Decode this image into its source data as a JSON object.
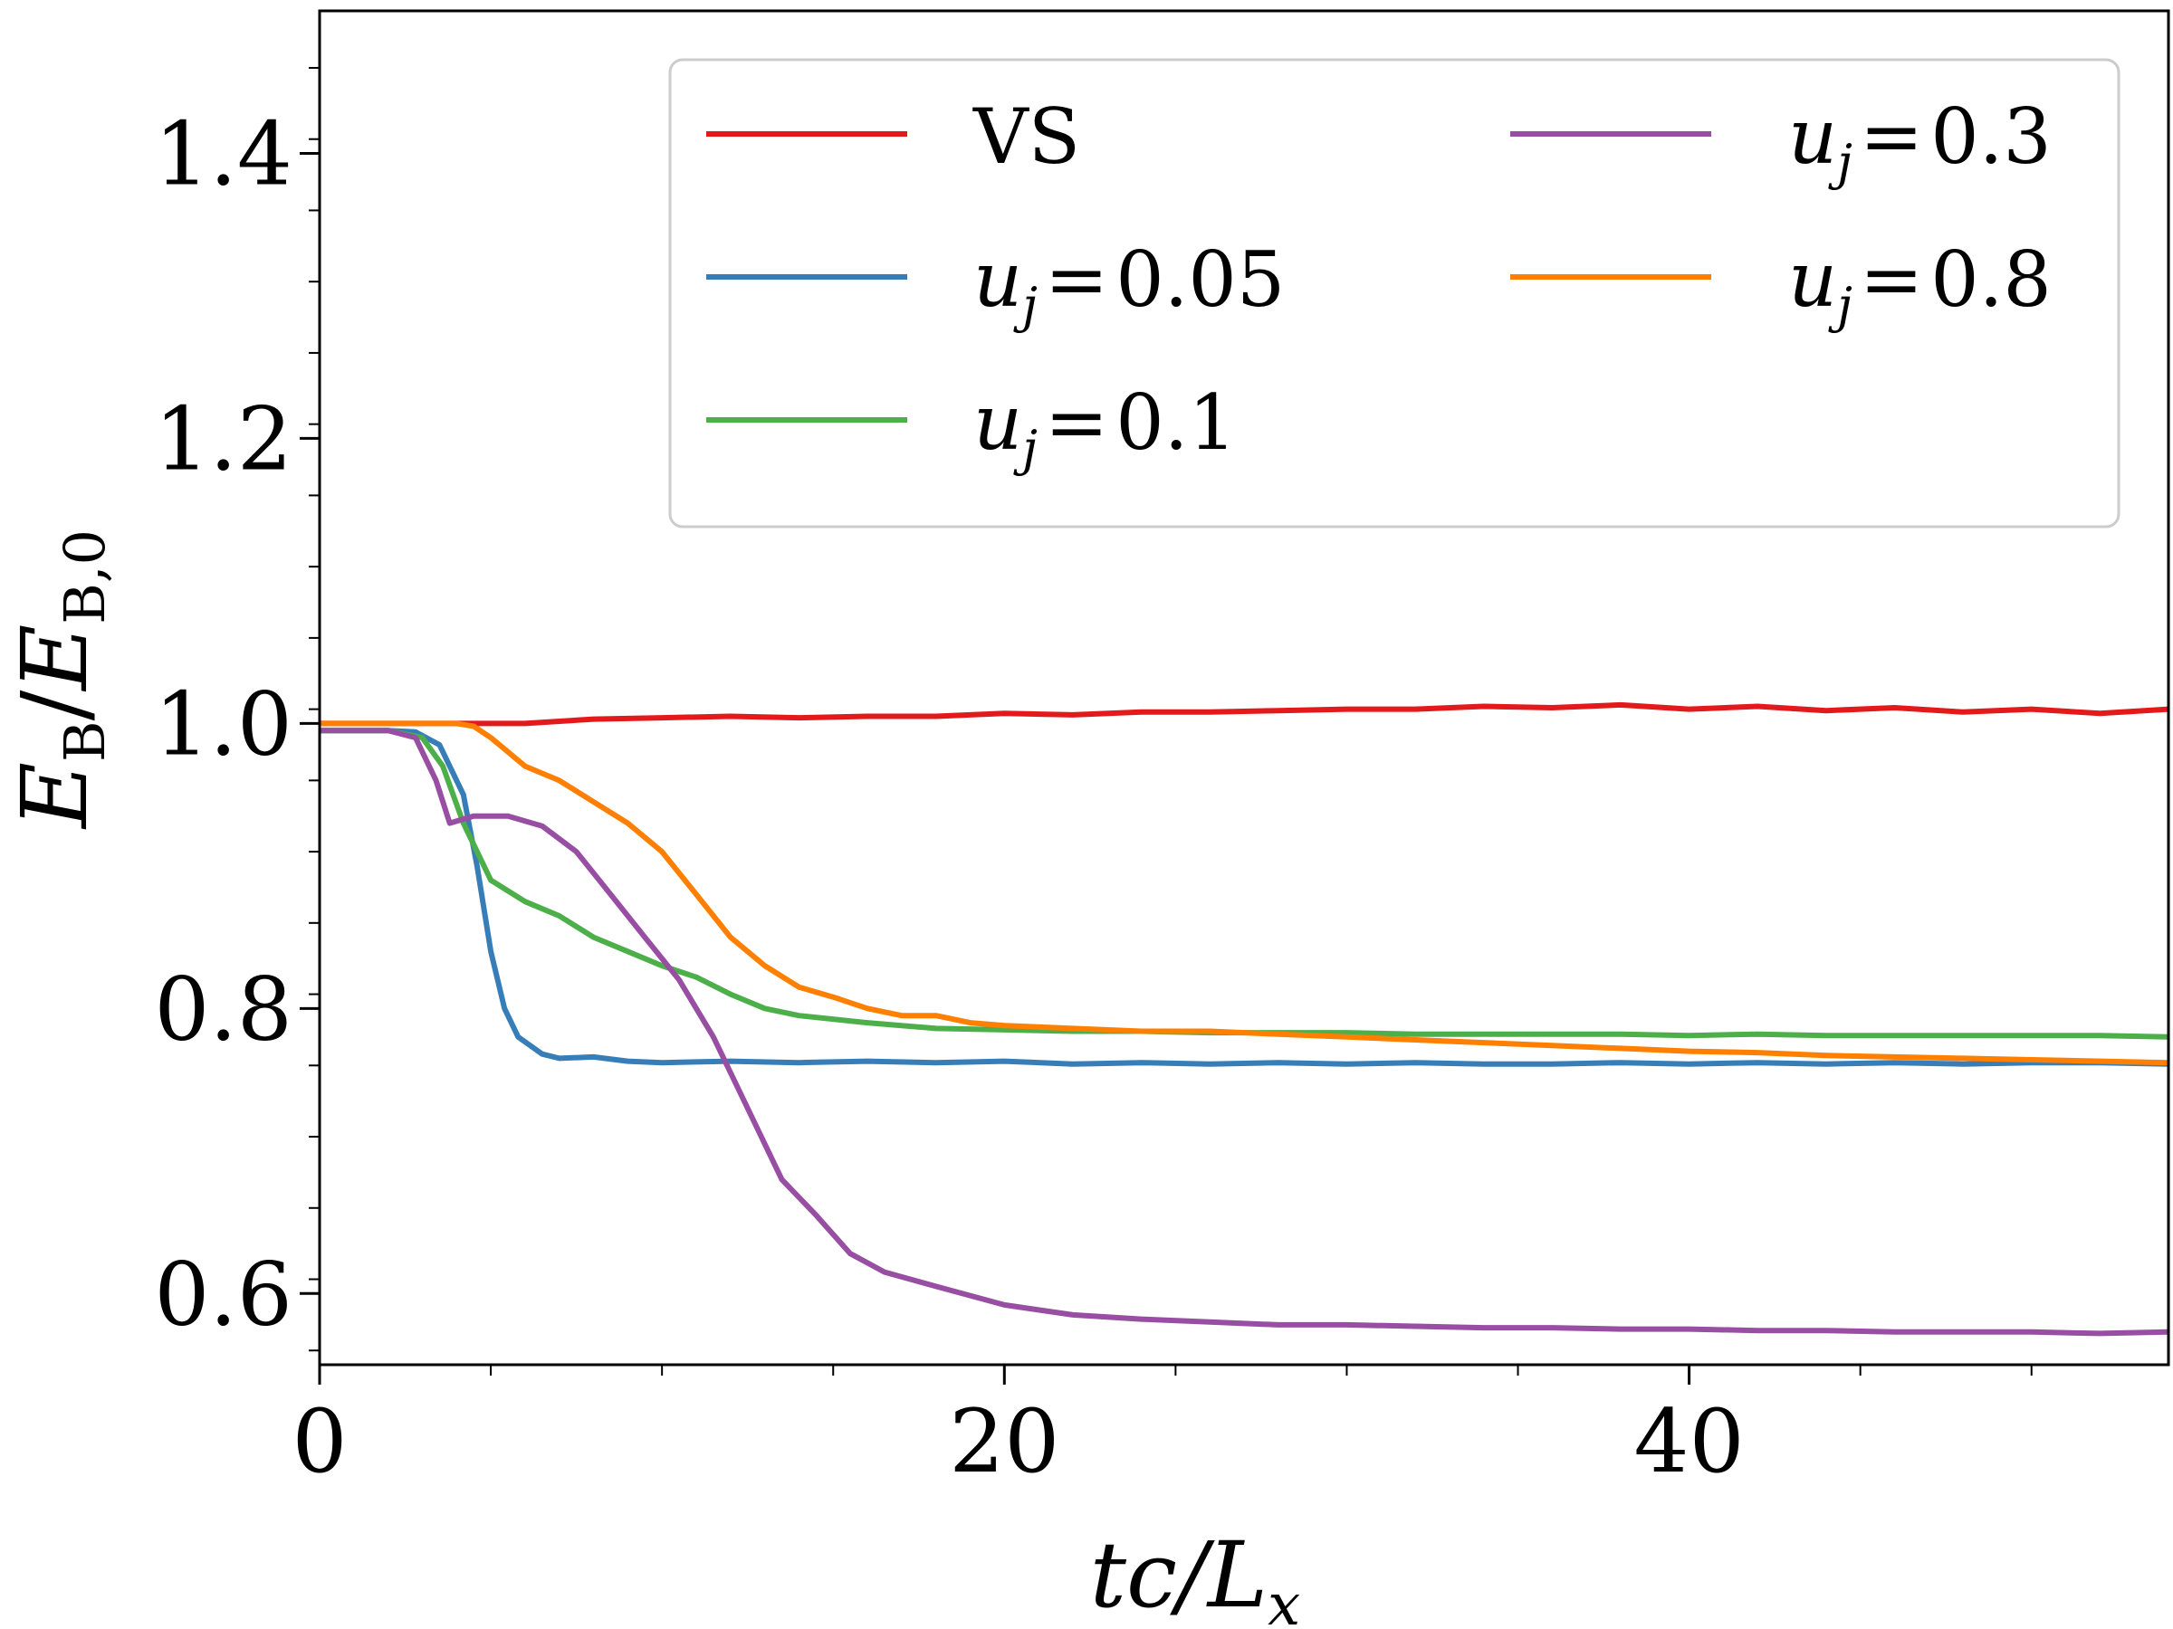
{
  "chart_data": {
    "type": "line",
    "title": "",
    "xlabel": "tc/L_x",
    "ylabel": "E_B/E_B,0",
    "xlim": [
      0,
      54
    ],
    "ylim": [
      0.55,
      1.5
    ],
    "xticks": [
      0,
      20,
      40
    ],
    "xtick_labels": [
      "0",
      "20",
      "40"
    ],
    "yticks": [
      0.6,
      0.8,
      1.0,
      1.2,
      1.4
    ],
    "ytick_labels": [
      "0.6",
      "0.8",
      "1.0",
      "1.2",
      "1.4"
    ],
    "grid": false,
    "legend_position": "top-right",
    "series": [
      {
        "name": "VS",
        "label": "VS",
        "color": "#e31a1c",
        "x": [
          0,
          2,
          4,
          6,
          8,
          10,
          12,
          14,
          16,
          18,
          20,
          22,
          24,
          26,
          28,
          30,
          32,
          34,
          36,
          38,
          40,
          42,
          44,
          46,
          48,
          50,
          52,
          54
        ],
        "y": [
          1.0,
          1.0,
          1.0,
          1.0,
          1.003,
          1.004,
          1.005,
          1.004,
          1.005,
          1.005,
          1.007,
          1.006,
          1.008,
          1.008,
          1.009,
          1.01,
          1.01,
          1.012,
          1.011,
          1.013,
          1.01,
          1.012,
          1.009,
          1.011,
          1.008,
          1.01,
          1.007,
          1.01
        ]
      },
      {
        "name": "u_j = 0.05",
        "label": "0.05",
        "color": "#377eb8",
        "x": [
          0,
          2,
          2.8,
          3.5,
          4.2,
          4.6,
          5.0,
          5.4,
          5.8,
          6.5,
          7.0,
          8,
          9,
          10,
          12,
          14,
          16,
          18,
          20,
          22,
          24,
          26,
          28,
          30,
          32,
          34,
          36,
          38,
          40,
          42,
          44,
          46,
          48,
          50,
          52,
          54
        ],
        "y": [
          0.995,
          0.995,
          0.994,
          0.985,
          0.95,
          0.9,
          0.84,
          0.8,
          0.78,
          0.768,
          0.765,
          0.766,
          0.763,
          0.762,
          0.763,
          0.762,
          0.763,
          0.762,
          0.763,
          0.761,
          0.762,
          0.761,
          0.762,
          0.761,
          0.762,
          0.761,
          0.761,
          0.762,
          0.761,
          0.762,
          0.761,
          0.762,
          0.761,
          0.762,
          0.762,
          0.761
        ]
      },
      {
        "name": "u_j = 0.1",
        "label": "0.1",
        "color": "#4daf4a",
        "x": [
          0,
          2,
          3,
          3.6,
          4.2,
          5.0,
          6,
          7,
          8,
          9,
          10,
          11,
          12,
          13,
          14,
          16,
          18,
          20,
          22,
          24,
          26,
          28,
          30,
          32,
          34,
          36,
          38,
          40,
          42,
          44,
          46,
          48,
          50,
          52,
          54
        ],
        "y": [
          0.995,
          0.995,
          0.99,
          0.97,
          0.93,
          0.89,
          0.875,
          0.865,
          0.85,
          0.84,
          0.83,
          0.822,
          0.81,
          0.8,
          0.795,
          0.79,
          0.786,
          0.785,
          0.784,
          0.784,
          0.783,
          0.783,
          0.783,
          0.782,
          0.782,
          0.782,
          0.782,
          0.781,
          0.782,
          0.781,
          0.781,
          0.781,
          0.781,
          0.781,
          0.78
        ]
      },
      {
        "name": "u_j = 0.3",
        "label": "0.3",
        "color": "#984ea3",
        "x": [
          0,
          2,
          2.8,
          3.4,
          3.8,
          4.5,
          5.5,
          6.5,
          7.5,
          8.5,
          9.5,
          10.5,
          11.5,
          12.5,
          13.5,
          14.5,
          15.5,
          16.5,
          18,
          20,
          22,
          24,
          26,
          28,
          30,
          32,
          34,
          36,
          38,
          40,
          42,
          44,
          46,
          48,
          50,
          52,
          54
        ],
        "y": [
          0.995,
          0.995,
          0.99,
          0.96,
          0.93,
          0.935,
          0.935,
          0.928,
          0.91,
          0.88,
          0.85,
          0.82,
          0.78,
          0.73,
          0.68,
          0.655,
          0.628,
          0.615,
          0.605,
          0.592,
          0.585,
          0.582,
          0.58,
          0.578,
          0.578,
          0.577,
          0.576,
          0.576,
          0.575,
          0.575,
          0.574,
          0.574,
          0.573,
          0.573,
          0.573,
          0.572,
          0.573
        ]
      },
      {
        "name": "u_j = 0.8",
        "label": "0.8",
        "color": "#ff7f00",
        "x": [
          0,
          2,
          3,
          4,
          4.5,
          5.0,
          6,
          7,
          8,
          9,
          10,
          11,
          12,
          13,
          14,
          15,
          16,
          17,
          18,
          19,
          20,
          22,
          24,
          26,
          28,
          30,
          32,
          34,
          36,
          38,
          40,
          42,
          44,
          46,
          48,
          50,
          52,
          54
        ],
        "y": [
          1.0,
          1.0,
          1.0,
          1.0,
          0.998,
          0.99,
          0.97,
          0.96,
          0.945,
          0.93,
          0.91,
          0.88,
          0.85,
          0.83,
          0.815,
          0.808,
          0.8,
          0.795,
          0.795,
          0.79,
          0.788,
          0.786,
          0.784,
          0.784,
          0.782,
          0.78,
          0.778,
          0.776,
          0.774,
          0.772,
          0.77,
          0.769,
          0.767,
          0.766,
          0.765,
          0.764,
          0.763,
          0.762
        ]
      }
    ]
  },
  "legend": {
    "entries": [
      {
        "kind": "plain",
        "text": "VS",
        "color": "#e31a1c"
      },
      {
        "kind": "uj",
        "prefix": "u",
        "sub": "j",
        "eq": "=",
        "value": "0.05",
        "color": "#377eb8"
      },
      {
        "kind": "uj",
        "prefix": "u",
        "sub": "j",
        "eq": "=",
        "value": "0.1",
        "color": "#4daf4a"
      },
      {
        "kind": "uj",
        "prefix": "u",
        "sub": "j",
        "eq": "=",
        "value": "0.3",
        "color": "#984ea3"
      },
      {
        "kind": "uj",
        "prefix": "u",
        "sub": "j",
        "eq": "=",
        "value": "0.8",
        "color": "#ff7f00"
      }
    ]
  },
  "axes": {
    "xlabel": {
      "t": "tc/",
      "L": "L",
      "sub": "x"
    },
    "ylabel": {
      "E1": "E",
      "sub1": "B",
      "slash": "/",
      "E2": "E",
      "sub2": "B,0"
    }
  }
}
